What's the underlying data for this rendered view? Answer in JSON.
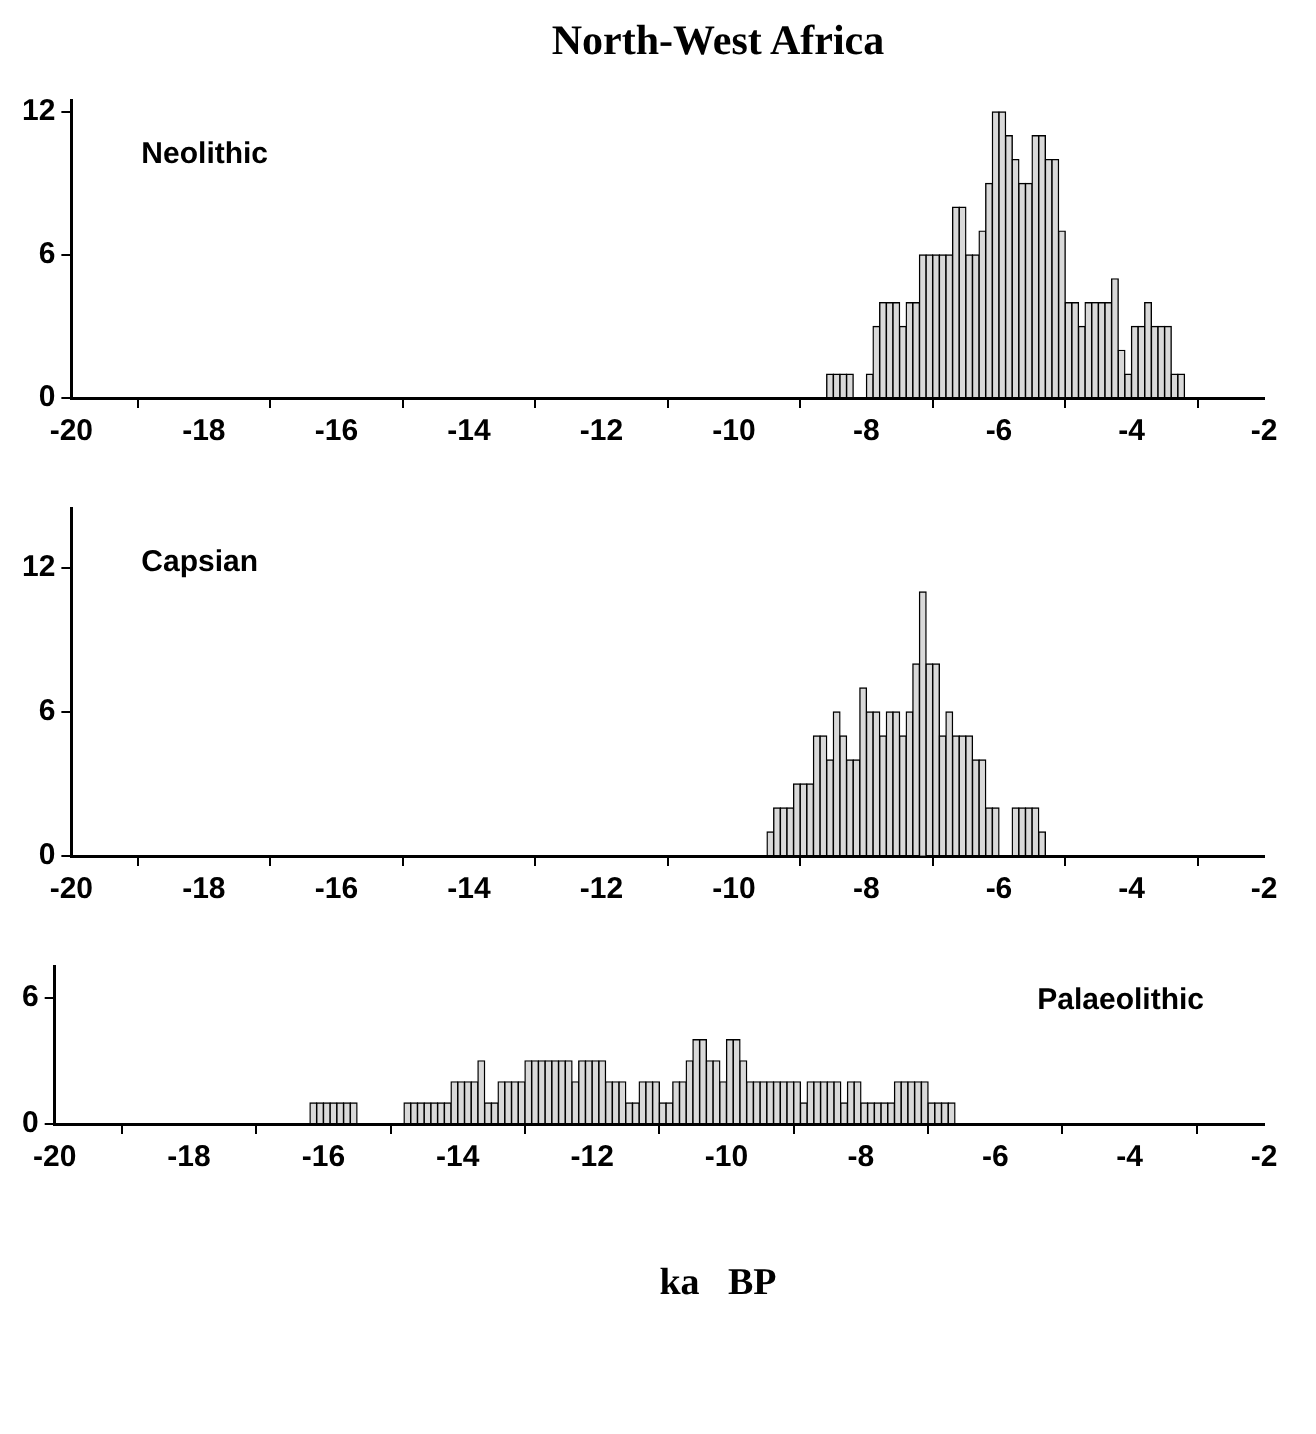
{
  "chart_data": [
    {
      "type": "histogram",
      "title": "North-West Africa",
      "annotations": [
        "Neolithic"
      ],
      "color": "#d9d9d9",
      "grid": false,
      "xlim": [
        -20,
        -2
      ],
      "xticks": [
        -20,
        -18,
        -16,
        -14,
        -12,
        -10,
        -8,
        -6,
        -4,
        -2
      ],
      "ylim": [
        0,
        12.5
      ],
      "yticks": [
        0,
        6,
        12
      ],
      "bins": [
        -8.6,
        -8.5,
        -8.4,
        -8.3,
        -8.2,
        -8.1,
        -8.0,
        -7.9,
        -7.8,
        -7.7,
        -7.6,
        -7.5,
        -7.4,
        -7.3,
        -7.2,
        -7.1,
        -7.0,
        -6.9,
        -6.8,
        -6.7,
        -6.6,
        -6.5,
        -6.4,
        -6.3,
        -6.2,
        -6.1,
        -6.0,
        -5.9,
        -5.8,
        -5.7,
        -5.6,
        -5.5,
        -5.4,
        -5.3,
        -5.2,
        -5.1,
        -5.0,
        -4.9,
        -4.8,
        -4.7,
        -4.6,
        -4.5,
        -4.4,
        -4.3,
        -4.2,
        -4.1,
        -4.0,
        -3.9,
        -3.8,
        -3.7,
        -3.6,
        -3.5,
        -3.4,
        -3.3,
        -3.2
      ],
      "values": [
        1,
        1,
        1,
        1,
        0,
        0,
        1,
        3,
        4,
        4,
        4,
        3,
        4,
        4,
        6,
        6,
        6,
        6,
        6,
        8,
        8,
        6,
        6,
        7,
        9,
        12,
        12,
        11,
        10,
        9,
        9,
        11,
        11,
        10,
        10,
        7,
        4,
        4,
        3,
        4,
        4,
        4,
        4,
        5,
        2,
        1,
        3,
        3,
        4,
        3,
        3,
        3,
        1,
        1
      ]
    },
    {
      "type": "histogram",
      "annotations": [
        "Capsian"
      ],
      "color": "#d9d9d9",
      "grid": false,
      "xlim": [
        -20,
        -2
      ],
      "xticks": [
        -20,
        -18,
        -16,
        -14,
        -12,
        -10,
        -8,
        -6,
        -4,
        -2
      ],
      "ylim": [
        0,
        14.5
      ],
      "yticks": [
        0,
        6,
        12
      ],
      "bins": [
        -9.5,
        -9.4,
        -9.3,
        -9.2,
        -9.1,
        -9.0,
        -8.9,
        -8.8,
        -8.7,
        -8.6,
        -8.5,
        -8.4,
        -8.3,
        -8.2,
        -8.1,
        -8.0,
        -7.9,
        -7.8,
        -7.7,
        -7.6,
        -7.5,
        -7.4,
        -7.3,
        -7.2,
        -7.1,
        -7.0,
        -6.9,
        -6.8,
        -6.7,
        -6.6,
        -6.5,
        -6.4,
        -6.3,
        -6.2,
        -6.1,
        -6.0,
        -5.9,
        -5.8,
        -5.7,
        -5.6,
        -5.5,
        -5.4,
        -5.3
      ],
      "values": [
        1,
        2,
        2,
        2,
        3,
        3,
        3,
        5,
        5,
        4,
        6,
        5,
        4,
        4,
        7,
        6,
        6,
        5,
        6,
        6,
        5,
        6,
        8,
        11,
        8,
        8,
        5,
        6,
        5,
        5,
        5,
        4,
        4,
        2,
        2,
        0,
        0,
        2,
        2,
        2,
        2,
        1
      ]
    },
    {
      "type": "histogram",
      "annotations": [
        "Palaeolithic"
      ],
      "xlabel": "ka   BP",
      "color": "#d9d9d9",
      "grid": false,
      "xlim": [
        -20,
        -2
      ],
      "xticks": [
        -20,
        -18,
        -16,
        -14,
        -12,
        -10,
        -8,
        -6,
        -4,
        -2
      ],
      "ylim": [
        0,
        7.5
      ],
      "yticks": [
        0,
        6
      ],
      "bins": [
        -16.2,
        -16.1,
        -16.0,
        -15.9,
        -15.8,
        -15.7,
        -15.6,
        -15.5,
        -15.4,
        -15.3,
        -15.2,
        -15.1,
        -15.0,
        -14.9,
        -14.8,
        -14.7,
        -14.6,
        -14.5,
        -14.4,
        -14.3,
        -14.2,
        -14.1,
        -14.0,
        -13.9,
        -13.8,
        -13.7,
        -13.6,
        -13.5,
        -13.4,
        -13.3,
        -13.2,
        -13.1,
        -13.0,
        -12.9,
        -12.8,
        -12.7,
        -12.6,
        -12.5,
        -12.4,
        -12.3,
        -12.2,
        -12.1,
        -12.0,
        -11.9,
        -11.8,
        -11.7,
        -11.6,
        -11.5,
        -11.4,
        -11.3,
        -11.2,
        -11.1,
        -11.0,
        -10.9,
        -10.8,
        -10.7,
        -10.6,
        -10.5,
        -10.4,
        -10.3,
        -10.2,
        -10.1,
        -10.0,
        -9.9,
        -9.8,
        -9.7,
        -9.6,
        -9.5,
        -9.4,
        -9.3,
        -9.2,
        -9.1,
        -9.0,
        -8.9,
        -8.8,
        -8.7,
        -8.6,
        -8.5,
        -8.4,
        -8.3,
        -8.2,
        -8.1,
        -8.0,
        -7.9,
        -7.8,
        -7.7,
        -7.6,
        -7.5,
        -7.4,
        -7.3,
        -7.2,
        -7.1,
        -7.0,
        -6.9,
        -6.8,
        -6.7,
        -6.6
      ],
      "values": [
        1,
        1,
        1,
        1,
        1,
        1,
        1,
        0,
        0,
        0,
        0,
        0,
        0,
        0,
        1,
        1,
        1,
        1,
        1,
        1,
        1,
        2,
        2,
        2,
        2,
        3,
        1,
        1,
        2,
        2,
        2,
        2,
        3,
        3,
        3,
        3,
        3,
        3,
        3,
        2,
        3,
        3,
        3,
        3,
        2,
        2,
        2,
        1,
        1,
        2,
        2,
        2,
        1,
        1,
        2,
        2,
        3,
        4,
        4,
        3,
        3,
        2,
        4,
        4,
        3,
        2,
        2,
        2,
        2,
        2,
        2,
        2,
        2,
        1,
        2,
        2,
        2,
        2,
        2,
        1,
        2,
        2,
        1,
        1,
        1,
        1,
        1,
        2,
        2,
        2,
        2,
        2,
        1,
        1,
        1,
        1
      ]
    }
  ]
}
